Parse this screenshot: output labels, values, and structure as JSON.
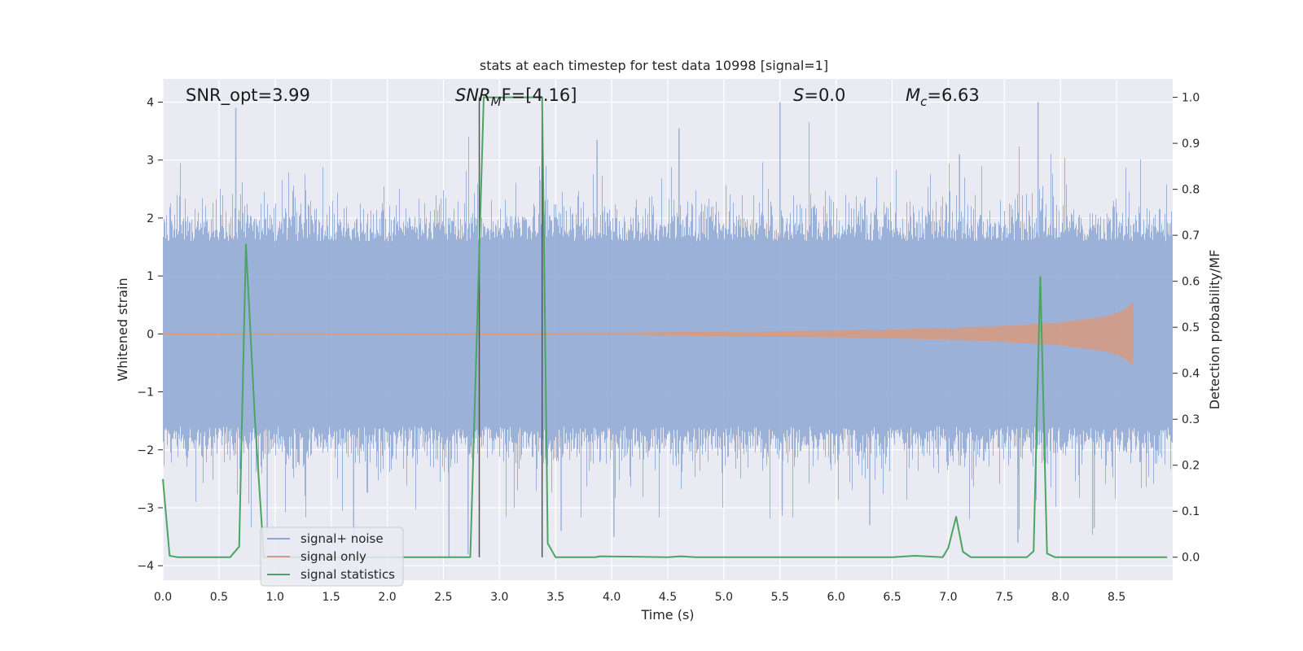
{
  "chart_data": {
    "type": "line",
    "title": "stats at each timestep for test data 10998 [signal=1]",
    "xlabel": "Time (s)",
    "ylabel": "Whitened strain",
    "ylabel_right": "Detection probability/MF",
    "xlim": [
      0,
      9.0
    ],
    "ylim": [
      -4.25,
      4.4
    ],
    "ylim_right": [
      -0.05,
      1.04
    ],
    "x_ticks": [
      "0.0",
      "0.5",
      "1.0",
      "1.5",
      "2.0",
      "2.5",
      "3.0",
      "3.5",
      "4.0",
      "4.5",
      "5.0",
      "5.5",
      "6.0",
      "6.5",
      "7.0",
      "7.5",
      "8.0",
      "8.5"
    ],
    "y_ticks": [
      "4",
      "3",
      "2",
      "1",
      "0",
      "−1",
      "−2",
      "−3",
      "−4"
    ],
    "y_ticks_right": [
      "1.0",
      "0.9",
      "0.8",
      "0.7",
      "0.6",
      "0.5",
      "0.4",
      "0.3",
      "0.2",
      "0.1",
      "0.0"
    ],
    "grid": true,
    "legend_position": "lower-left",
    "annotations": {
      "snr_opt": "SNR_opt=3.99",
      "snr_mf_base": "SNR",
      "snr_mf_sub": "M",
      "snr_mf_rest": "F=[4.16]",
      "s_label": "S",
      "s_value": "=0.0",
      "mc_base": "M",
      "mc_sub": "c",
      "mc_value": "=6.63"
    },
    "series": [
      {
        "name": "signal+ noise",
        "color": "#8fa8d4",
        "x_range": [
          0,
          9.0
        ],
        "core_band": 1.6,
        "spike_max": 4.0,
        "spikes": [
          [
            0.65,
            3.9
          ],
          [
            0.93,
            -3.4
          ],
          [
            1.7,
            -3.6
          ],
          [
            2.55,
            -3.85
          ],
          [
            2.72,
            -3.8
          ],
          [
            3.55,
            -3.4
          ],
          [
            3.87,
            3.35
          ],
          [
            4.02,
            -3.5
          ],
          [
            4.6,
            3.55
          ],
          [
            5.5,
            4.0
          ],
          [
            5.52,
            -3.05
          ],
          [
            6.3,
            -3.3
          ],
          [
            7.1,
            3.1
          ],
          [
            7.62,
            -3.6
          ],
          [
            7.8,
            4.0
          ],
          [
            8.3,
            -3.35
          ]
        ]
      },
      {
        "name": "signal only",
        "color": "#d39c85",
        "x": [
          0.0,
          4.0,
          5.0,
          6.0,
          7.0,
          7.5,
          8.0,
          8.4,
          8.55,
          8.65
        ],
        "amplitude": [
          0.01,
          0.02,
          0.04,
          0.06,
          0.1,
          0.14,
          0.2,
          0.3,
          0.4,
          0.55
        ]
      },
      {
        "name": "signal statistics",
        "color": "#4aa564",
        "x": [
          0.0,
          0.06,
          0.13,
          0.6,
          0.68,
          0.74,
          0.82,
          0.9,
          2.74,
          2.8,
          2.86,
          3.38,
          3.43,
          3.5,
          3.85,
          3.9,
          4.5,
          4.62,
          4.75,
          6.5,
          6.7,
          6.95,
          7.0,
          7.07,
          7.13,
          7.2,
          7.7,
          7.76,
          7.82,
          7.88,
          7.95,
          8.95
        ],
        "y": [
          0.17,
          0.003,
          0.0,
          0.0,
          0.023,
          0.68,
          0.3,
          0.0,
          0.0,
          0.5,
          1.0,
          1.0,
          0.03,
          0.0,
          0.0,
          0.002,
          0.0,
          0.002,
          0.0,
          0.0,
          0.003,
          0.0,
          0.02,
          0.088,
          0.012,
          0.0,
          0.0,
          0.013,
          0.61,
          0.008,
          0.0,
          0.0
        ]
      }
    ],
    "vertical_markers": {
      "color": "#555555",
      "x": [
        2.82,
        3.38
      ],
      "y_range_right": [
        0.0,
        1.0
      ]
    }
  }
}
